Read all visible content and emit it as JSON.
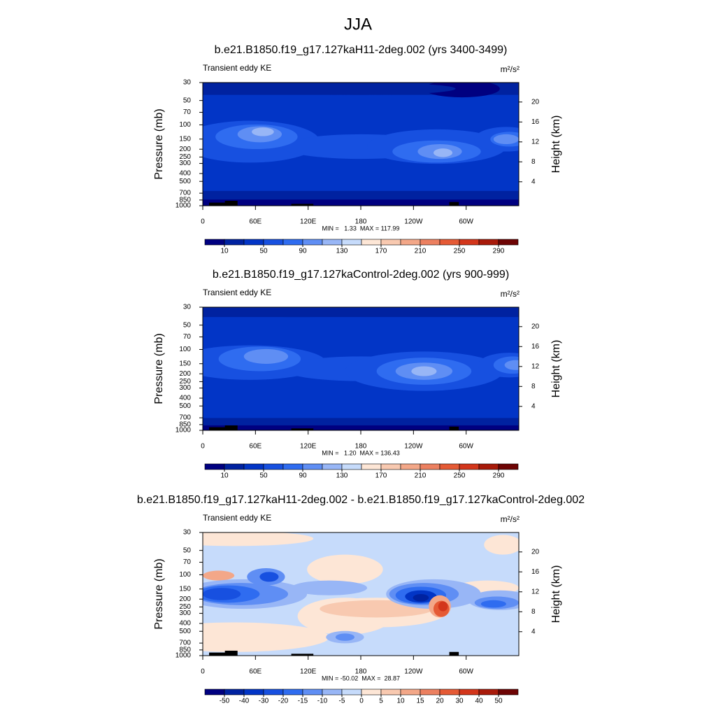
{
  "title": "JJA",
  "colormap": [
    "#000080",
    "#0022a0",
    "#0235c6",
    "#1750e0",
    "#2f6cf0",
    "#5f8ef4",
    "#98b6f6",
    "#c6dbfb",
    "#fde6d6",
    "#f8c9b0",
    "#f3a788",
    "#ec8060",
    "#e55a35",
    "#d3361b",
    "#a81a0a",
    "#6e0404"
  ],
  "panels": [
    {
      "title": "b.e21.B1850.f19_g17.127kaH11-2deg.002 (yrs 3400-3499)",
      "subtitle": "Transient eddy KE",
      "units": "m²/s²",
      "stats": "MIN =   1.33  MAX = 117.99",
      "ylabel": "Pressure (mb)",
      "y2label": "Height (km)",
      "xlim": [
        0,
        360
      ],
      "xticks": [
        0,
        {
          "value": 60,
          "label": "60E"
        },
        {
          "value": 120,
          "label": "120E"
        },
        180,
        {
          "value": 240,
          "label": "120W"
        },
        {
          "value": 300,
          "label": "60W"
        }
      ],
      "ylim": [
        1000,
        30
      ],
      "log_y": true,
      "yticks": [
        30,
        50,
        70,
        100,
        150,
        200,
        250,
        300,
        400,
        500,
        700,
        850,
        1000
      ],
      "y2lim": [
        -0.8,
        23.9
      ],
      "y2ticks": [
        4,
        8,
        12,
        16,
        20
      ],
      "colorbar": {
        "clim": [
          -10,
          310
        ],
        "ticks": [
          10,
          50,
          90,
          130,
          170,
          210,
          250,
          290
        ]
      }
    },
    {
      "title": "b.e21.B1850.f19_g17.127kaControl-2deg.002 (yrs 900-999)",
      "subtitle": "Transient eddy KE",
      "units": "m²/s²",
      "stats": "MIN =   1.20  MAX = 136.43",
      "ylabel": "Pressure (mb)",
      "y2label": "Height (km)",
      "xlim": [
        0,
        360
      ],
      "xticks": [
        0,
        {
          "value": 60,
          "label": "60E"
        },
        {
          "value": 120,
          "label": "120E"
        },
        180,
        {
          "value": 240,
          "label": "120W"
        },
        {
          "value": 300,
          "label": "60W"
        }
      ],
      "ylim": [
        1000,
        30
      ],
      "log_y": true,
      "yticks": [
        30,
        50,
        70,
        100,
        150,
        200,
        250,
        300,
        400,
        500,
        700,
        850,
        1000
      ],
      "y2lim": [
        -0.8,
        23.9
      ],
      "y2ticks": [
        4,
        8,
        12,
        16,
        20
      ],
      "colorbar": {
        "clim": [
          -10,
          310
        ],
        "ticks": [
          10,
          50,
          90,
          130,
          170,
          210,
          250,
          290
        ]
      }
    },
    {
      "title": "b.e21.B1850.f19_g17.127kaH11-2deg.002 - b.e21.B1850.f19_g17.127kaControl-2deg.002",
      "subtitle": "Transient eddy KE",
      "units": "m²/s²",
      "stats": "MIN = -50.02  MAX =  28.87",
      "ylabel": "Pressure (mb)",
      "y2label": "Height (km)",
      "xlim": [
        0,
        360
      ],
      "xticks": [
        0,
        {
          "value": 60,
          "label": "60E"
        },
        {
          "value": 120,
          "label": "120E"
        },
        180,
        {
          "value": 240,
          "label": "120W"
        },
        {
          "value": 300,
          "label": "60W"
        }
      ],
      "ylim": [
        1000,
        30
      ],
      "log_y": true,
      "yticks": [
        30,
        50,
        70,
        100,
        150,
        200,
        250,
        300,
        400,
        500,
        700,
        850,
        1000
      ],
      "y2lim": [
        -0.8,
        23.9
      ],
      "y2ticks": [
        4,
        8,
        12,
        16,
        20
      ],
      "colorbar": {
        "levels": [
          -50,
          -40,
          -30,
          -20,
          -15,
          -10,
          -5,
          0,
          5,
          10,
          15,
          20,
          30,
          40,
          50
        ]
      }
    }
  ]
}
